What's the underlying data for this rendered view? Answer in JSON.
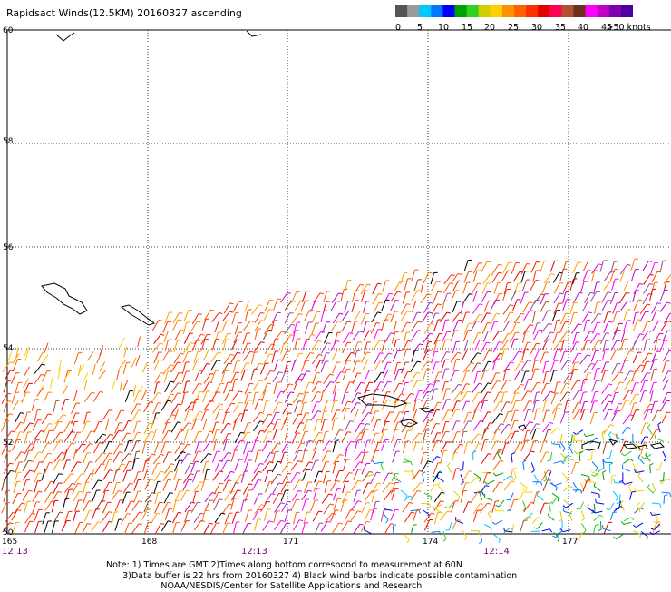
{
  "title": "Rapidsact Winds(12.5KM) 20160327 ascending",
  "colorbar": {
    "labels": [
      "0",
      "5",
      "10",
      "15",
      "20",
      "25",
      "30",
      "35",
      "40",
      "45",
      ">50 knots"
    ],
    "colors": [
      "#555555",
      "#9a9a9a",
      "#00c8ff",
      "#0078ff",
      "#0000ff",
      "#00a000",
      "#30d020",
      "#d0d000",
      "#ffd000",
      "#ff9000",
      "#ff6000",
      "#ff3000",
      "#e00000",
      "#ff0050",
      "#b05030",
      "#703020",
      "#ff00ff",
      "#c000c0",
      "#8000b0",
      "#5000a0"
    ]
  },
  "map": {
    "lat_labels": [
      "60",
      "58",
      "56",
      "54",
      "52",
      "50"
    ],
    "lon_labels": [
      "165",
      "168",
      "171",
      "174",
      "177"
    ],
    "time_labels": [
      "12:13",
      "12:13",
      "12:14"
    ]
  },
  "notes": [
    "Note: 1) Times are GMT 2)Times along bottom correspond to measurement at 60N",
    "      3)Data buffer is 22 hrs from 20160327 4) Black wind barbs indicate possible contamination",
    "                    NOAA/NESDIS/Center for Satellite Applications and Research"
  ]
}
